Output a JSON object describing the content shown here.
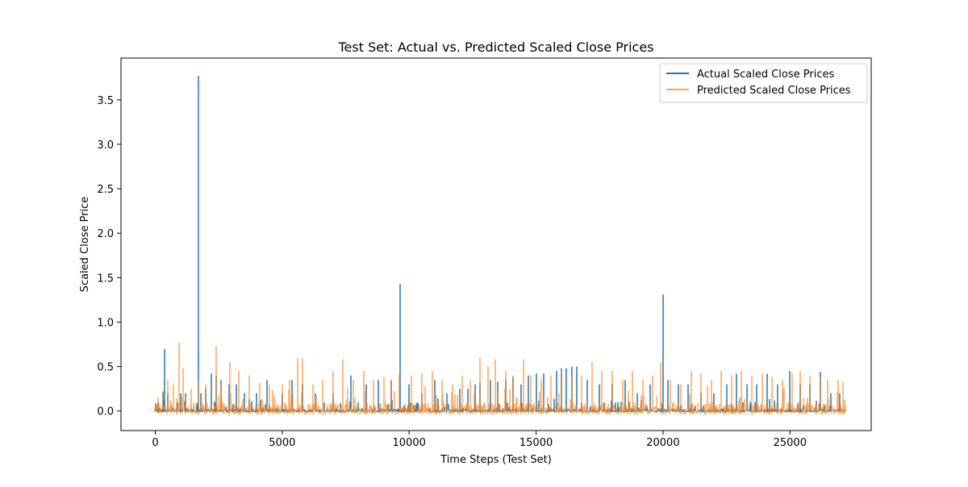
{
  "chart_data": {
    "type": "line",
    "title": "Test Set: Actual vs. Predicted Scaled Close Prices",
    "xlabel": "Time Steps (Test Set)",
    "ylabel": "Scaled Close Price",
    "xlim": [
      -1350,
      28200
    ],
    "ylim": [
      -0.22,
      3.97
    ],
    "x_ticks": [
      0,
      5000,
      10000,
      15000,
      20000,
      25000
    ],
    "x_tick_labels": [
      "0",
      "5000",
      "10000",
      "15000",
      "20000",
      "25000"
    ],
    "y_ticks": [
      0.0,
      0.5,
      1.0,
      1.5,
      2.0,
      2.5,
      3.0,
      3.5
    ],
    "y_tick_labels": [
      "0.0",
      "0.5",
      "1.0",
      "1.5",
      "2.0",
      "2.5",
      "3.0",
      "3.5"
    ],
    "grid": false,
    "legend_position": "top-right",
    "x_max": 27200,
    "series": [
      {
        "name": "Actual Scaled Close Prices",
        "color": "#1f77b4",
        "alpha": 1.0,
        "noise": [
          -0.015,
          0.03
        ],
        "spikes": [
          [
            100,
            0.1
          ],
          [
            300,
            0.22
          ],
          [
            380,
            0.7
          ],
          [
            500,
            0.2
          ],
          [
            1000,
            0.2
          ],
          [
            1200,
            0.2
          ],
          [
            1700,
            3.77
          ],
          [
            1800,
            0.2
          ],
          [
            2000,
            0.25
          ],
          [
            2200,
            0.42
          ],
          [
            2400,
            0.4
          ],
          [
            2600,
            0.35
          ],
          [
            2900,
            0.3
          ],
          [
            3200,
            0.3
          ],
          [
            3500,
            0.2
          ],
          [
            4000,
            0.2
          ],
          [
            4400,
            0.35
          ],
          [
            5000,
            0.2
          ],
          [
            5400,
            0.35
          ],
          [
            5800,
            0.3
          ],
          [
            6300,
            0.2
          ],
          [
            7000,
            0.2
          ],
          [
            7700,
            0.4
          ],
          [
            8300,
            0.3
          ],
          [
            8800,
            0.35
          ],
          [
            9300,
            0.35
          ],
          [
            9650,
            1.43
          ],
          [
            10000,
            0.3
          ],
          [
            10500,
            0.2
          ],
          [
            11000,
            0.35
          ],
          [
            11500,
            0.2
          ],
          [
            12000,
            0.25
          ],
          [
            12300,
            0.25
          ],
          [
            12600,
            0.3
          ],
          [
            12800,
            0.32
          ],
          [
            13200,
            0.35
          ],
          [
            13500,
            0.33
          ],
          [
            13800,
            0.35
          ],
          [
            14100,
            0.38
          ],
          [
            14400,
            0.3
          ],
          [
            14700,
            0.4
          ],
          [
            15000,
            0.42
          ],
          [
            15300,
            0.42
          ],
          [
            15800,
            0.45
          ],
          [
            16000,
            0.48
          ],
          [
            16200,
            0.48
          ],
          [
            16400,
            0.5
          ],
          [
            16600,
            0.5
          ],
          [
            17000,
            0.35
          ],
          [
            17500,
            0.3
          ],
          [
            18000,
            0.3
          ],
          [
            18500,
            0.35
          ],
          [
            19000,
            0.2
          ],
          [
            19500,
            0.3
          ],
          [
            20000,
            1.31
          ],
          [
            20200,
            0.35
          ],
          [
            20600,
            0.3
          ],
          [
            21000,
            0.3
          ],
          [
            21500,
            0.2
          ],
          [
            22000,
            0.2
          ],
          [
            22500,
            0.3
          ],
          [
            22900,
            0.42
          ],
          [
            23300,
            0.3
          ],
          [
            23700,
            0.3
          ],
          [
            24100,
            0.42
          ],
          [
            24500,
            0.3
          ],
          [
            25000,
            0.45
          ],
          [
            25400,
            0.3
          ],
          [
            25800,
            0.3
          ],
          [
            26200,
            0.44
          ],
          [
            26600,
            0.2
          ],
          [
            26950,
            0.2
          ]
        ]
      },
      {
        "name": "Predicted Scaled Close Prices",
        "color": "#ff7f0e",
        "alpha": 0.7,
        "noise": [
          -0.04,
          0.09
        ],
        "spikes": [
          [
            300,
            0.22
          ],
          [
            500,
            0.35
          ],
          [
            700,
            0.3
          ],
          [
            950,
            0.77
          ],
          [
            1100,
            0.48
          ],
          [
            1400,
            0.25
          ],
          [
            1700,
            0.35
          ],
          [
            2000,
            0.3
          ],
          [
            2400,
            0.73
          ],
          [
            2600,
            0.35
          ],
          [
            2950,
            0.55
          ],
          [
            3300,
            0.45
          ],
          [
            3700,
            0.4
          ],
          [
            4100,
            0.32
          ],
          [
            4500,
            0.3
          ],
          [
            5000,
            0.3
          ],
          [
            5300,
            0.35
          ],
          [
            5600,
            0.59
          ],
          [
            5800,
            0.59
          ],
          [
            6200,
            0.3
          ],
          [
            6600,
            0.35
          ],
          [
            7000,
            0.45
          ],
          [
            7400,
            0.58
          ],
          [
            7800,
            0.35
          ],
          [
            8200,
            0.45
          ],
          [
            8600,
            0.35
          ],
          [
            9000,
            0.38
          ],
          [
            9300,
            0.35
          ],
          [
            9600,
            0.42
          ],
          [
            10100,
            0.4
          ],
          [
            10500,
            0.42
          ],
          [
            10900,
            0.45
          ],
          [
            11300,
            0.35
          ],
          [
            11700,
            0.3
          ],
          [
            12100,
            0.4
          ],
          [
            12400,
            0.35
          ],
          [
            12800,
            0.6
          ],
          [
            13100,
            0.5
          ],
          [
            13400,
            0.58
          ],
          [
            13800,
            0.45
          ],
          [
            14100,
            0.4
          ],
          [
            14500,
            0.58
          ],
          [
            14800,
            0.4
          ],
          [
            15200,
            0.35
          ],
          [
            15600,
            0.4
          ],
          [
            16000,
            0.45
          ],
          [
            16400,
            0.4
          ],
          [
            16800,
            0.4
          ],
          [
            17200,
            0.55
          ],
          [
            17600,
            0.45
          ],
          [
            18000,
            0.45
          ],
          [
            18400,
            0.35
          ],
          [
            18800,
            0.45
          ],
          [
            19200,
            0.35
          ],
          [
            19600,
            0.4
          ],
          [
            19900,
            0.55
          ],
          [
            20300,
            0.35
          ],
          [
            20700,
            0.3
          ],
          [
            21100,
            0.45
          ],
          [
            21500,
            0.42
          ],
          [
            21900,
            0.35
          ],
          [
            22300,
            0.45
          ],
          [
            22700,
            0.4
          ],
          [
            23100,
            0.45
          ],
          [
            23500,
            0.4
          ],
          [
            23900,
            0.42
          ],
          [
            24300,
            0.38
          ],
          [
            24700,
            0.35
          ],
          [
            25100,
            0.42
          ],
          [
            25400,
            0.45
          ],
          [
            25800,
            0.4
          ],
          [
            26200,
            0.38
          ],
          [
            26500,
            0.35
          ],
          [
            26900,
            0.35
          ],
          [
            27100,
            0.33
          ]
        ]
      }
    ]
  }
}
